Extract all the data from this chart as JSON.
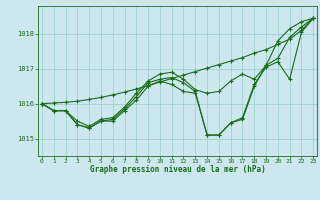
{
  "title": "Graphe pression niveau de la mer (hPa)",
  "xlabel_hours": [
    0,
    1,
    2,
    3,
    4,
    5,
    6,
    7,
    8,
    9,
    10,
    11,
    12,
    13,
    14,
    15,
    16,
    17,
    18,
    19,
    20,
    21,
    22,
    23
  ],
  "ylim": [
    1014.5,
    1018.8
  ],
  "yticks": [
    1015,
    1016,
    1017,
    1018
  ],
  "background_color": "#cce8ee",
  "grid_color": "#99cccc",
  "line_color": "#1a6b1a",
  "line1": [
    1016.0,
    1015.8,
    1015.8,
    1015.4,
    1015.3,
    1015.5,
    1015.5,
    1015.8,
    1016.1,
    1016.5,
    1016.65,
    1016.55,
    1016.35,
    1016.3,
    1015.1,
    1015.1,
    1015.45,
    1015.55,
    1016.5,
    1017.1,
    1017.8,
    1018.15,
    1018.35,
    1018.45
  ],
  "line2": [
    1016.0,
    1015.8,
    1015.8,
    1015.4,
    1015.3,
    1015.5,
    1015.55,
    1015.85,
    1016.2,
    1016.6,
    1016.7,
    1016.75,
    1016.6,
    1016.35,
    1015.1,
    1015.1,
    1015.45,
    1015.6,
    1016.55,
    1017.05,
    1017.2,
    1016.7,
    1018.05,
    1018.45
  ],
  "line3": [
    1016.0,
    1015.8,
    1015.8,
    1015.5,
    1015.35,
    1015.55,
    1015.6,
    1015.9,
    1016.3,
    1016.65,
    1016.85,
    1016.9,
    1016.7,
    1016.4,
    1016.3,
    1016.35,
    1016.65,
    1016.85,
    1016.7,
    1017.1,
    1017.3,
    1017.9,
    1018.2,
    1018.45
  ],
  "line4_straight": [
    1016.0,
    1016.02,
    1016.04,
    1016.07,
    1016.12,
    1016.18,
    1016.25,
    1016.33,
    1016.42,
    1016.52,
    1016.62,
    1016.72,
    1016.82,
    1016.92,
    1017.02,
    1017.12,
    1017.22,
    1017.32,
    1017.45,
    1017.55,
    1017.7,
    1017.85,
    1018.1,
    1018.45
  ]
}
